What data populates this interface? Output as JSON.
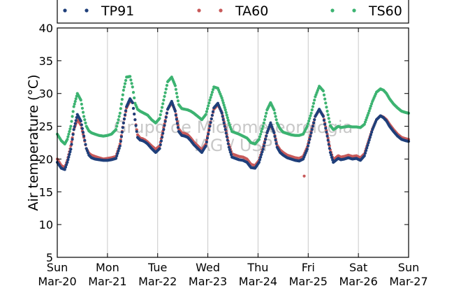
{
  "chart_data": {
    "type": "scatter",
    "title": "",
    "xlabel": "",
    "ylabel": "Air temperature (°C)",
    "ylim": [
      5,
      40
    ],
    "xlim": [
      0,
      7
    ],
    "grid": "vertical",
    "legend_placement": "top",
    "watermark": [
      "Grupo de Micrometeorologia",
      "IAG / USP"
    ],
    "x_ticks": [
      {
        "x": 0,
        "day": "Sun",
        "date": "Mar-20"
      },
      {
        "x": 1,
        "day": "Mon",
        "date": "Mar-21"
      },
      {
        "x": 2,
        "day": "Tue",
        "date": "Mar-22"
      },
      {
        "x": 3,
        "day": "Wed",
        "date": "Mar-23"
      },
      {
        "x": 4,
        "day": "Thu",
        "date": "Mar-24"
      },
      {
        "x": 5,
        "day": "Fri",
        "date": "Mar-25"
      },
      {
        "x": 6,
        "day": "Sat",
        "date": "Mar-26"
      },
      {
        "x": 7,
        "day": "Sun",
        "date": "Mar-27"
      }
    ],
    "y_ticks": [
      5,
      10,
      15,
      20,
      25,
      30,
      35,
      40
    ],
    "series": [
      {
        "name": "TP91",
        "color": "#1f3f7a",
        "x": [
          0.0,
          0.08,
          0.15,
          0.2,
          0.27,
          0.33,
          0.4,
          0.47,
          0.53,
          0.58,
          0.63,
          0.68,
          0.75,
          0.83,
          0.92,
          1.0,
          1.08,
          1.17,
          1.25,
          1.32,
          1.38,
          1.45,
          1.5,
          1.55,
          1.6,
          1.65,
          1.7,
          1.75,
          1.8,
          1.88,
          1.96,
          2.04,
          2.12,
          2.2,
          2.28,
          2.35,
          2.42,
          2.48,
          2.54,
          2.6,
          2.66,
          2.72,
          2.8,
          2.88,
          2.96,
          3.04,
          3.12,
          3.2,
          3.28,
          3.35,
          3.42,
          3.48,
          3.55,
          3.62,
          3.7,
          3.78,
          3.86,
          3.94,
          4.02,
          4.1,
          4.18,
          4.25,
          4.32,
          4.38,
          4.44,
          4.5,
          4.58,
          4.66,
          4.74,
          4.82,
          4.9,
          4.98,
          5.06,
          5.14,
          5.22,
          5.3,
          5.38,
          5.44,
          5.5,
          5.55,
          5.58,
          5.6,
          5.65,
          5.72,
          5.8,
          5.88,
          5.96,
          6.04,
          6.12,
          6.2,
          6.28,
          6.36,
          6.44,
          6.5,
          6.56,
          6.62,
          6.7,
          6.78,
          6.86,
          6.94,
          7.0
        ],
        "y": [
          19.5,
          18.6,
          18.4,
          19.5,
          21.5,
          24.5,
          26.8,
          25.8,
          23.5,
          21.6,
          20.6,
          20.2,
          20.0,
          19.9,
          19.8,
          19.8,
          19.9,
          20.1,
          22.0,
          25.5,
          28.0,
          29.2,
          28.6,
          26.0,
          23.3,
          22.9,
          22.8,
          22.6,
          22.3,
          21.6,
          21.0,
          21.6,
          24.5,
          27.6,
          28.8,
          27.3,
          24.2,
          23.6,
          23.5,
          23.3,
          22.8,
          22.2,
          21.6,
          21.0,
          22.0,
          25.0,
          27.8,
          28.5,
          27.0,
          24.5,
          21.8,
          20.3,
          20.1,
          19.9,
          19.8,
          19.5,
          18.7,
          18.6,
          19.5,
          21.5,
          24.0,
          25.5,
          24.0,
          21.8,
          21.0,
          20.6,
          20.2,
          20.0,
          19.8,
          19.7,
          20.0,
          21.5,
          24.0,
          26.5,
          27.6,
          26.5,
          23.5,
          21.0,
          19.5,
          19.8,
          20.0,
          20.1,
          19.9,
          20.0,
          20.2,
          20.0,
          20.1,
          19.8,
          20.5,
          22.5,
          24.5,
          26.0,
          26.6,
          26.3,
          25.8,
          25.0,
          24.2,
          23.5,
          23.0,
          22.8,
          22.7
        ]
      },
      {
        "name": "TA60",
        "color": "#c85a5a",
        "x": [
          0.0,
          0.08,
          0.15,
          0.2,
          0.27,
          0.33,
          0.4,
          0.47,
          0.53,
          0.58,
          0.63,
          0.68,
          0.75,
          0.83,
          0.92,
          1.0,
          1.08,
          1.17,
          1.25,
          1.32,
          1.38,
          1.45,
          1.5,
          1.55,
          1.6,
          1.65,
          1.7,
          1.75,
          1.8,
          1.88,
          1.96,
          2.04,
          2.12,
          2.2,
          2.28,
          2.35,
          2.42,
          2.48,
          2.54,
          2.6,
          2.66,
          2.72,
          2.8,
          2.88,
          2.96,
          3.04,
          3.12,
          3.2,
          3.28,
          3.35,
          3.42,
          3.48,
          3.55,
          3.62,
          3.7,
          3.78,
          3.86,
          3.94,
          4.02,
          4.1,
          4.18,
          4.25,
          4.32,
          4.38,
          4.44,
          4.5,
          4.58,
          4.66,
          4.74,
          4.82,
          4.9,
          4.98,
          5.06,
          5.14,
          5.22,
          5.3,
          5.38,
          5.44,
          5.5,
          5.55,
          5.58,
          5.6,
          5.65,
          5.72,
          5.8,
          5.88,
          5.96,
          6.04,
          6.12,
          6.2,
          6.28,
          6.36,
          6.44,
          6.5,
          6.56,
          6.62,
          6.7,
          6.78,
          6.86,
          6.94,
          7.0,
          4.92
        ],
        "y": [
          20.0,
          19.0,
          18.7,
          19.8,
          22.0,
          24.5,
          26.0,
          25.2,
          23.3,
          21.6,
          20.9,
          20.6,
          20.4,
          20.2,
          20.0,
          20.1,
          20.2,
          20.4,
          22.3,
          25.5,
          27.8,
          28.9,
          28.6,
          26.0,
          23.7,
          23.2,
          23.1,
          22.9,
          22.6,
          22.0,
          21.5,
          22.0,
          24.8,
          27.6,
          28.6,
          27.4,
          24.6,
          24.0,
          23.9,
          23.7,
          23.2,
          22.6,
          22.0,
          21.4,
          22.3,
          25.2,
          27.6,
          28.3,
          27.1,
          24.8,
          22.2,
          20.8,
          20.6,
          20.4,
          20.3,
          20.0,
          19.2,
          19.0,
          19.8,
          21.8,
          24.0,
          25.3,
          24.1,
          22.1,
          21.4,
          21.0,
          20.6,
          20.4,
          20.2,
          20.1,
          20.4,
          21.8,
          24.2,
          26.5,
          27.5,
          26.6,
          23.8,
          21.4,
          19.9,
          20.2,
          20.4,
          20.5,
          20.3,
          20.4,
          20.6,
          20.4,
          20.5,
          20.2,
          20.8,
          22.7,
          24.6,
          26.0,
          26.6,
          26.4,
          26.0,
          25.3,
          24.5,
          23.8,
          23.3,
          23.1,
          23.0,
          17.4
        ]
      },
      {
        "name": "TS60",
        "color": "#3cb371",
        "x": [
          0.0,
          0.08,
          0.15,
          0.2,
          0.27,
          0.33,
          0.4,
          0.47,
          0.53,
          0.58,
          0.63,
          0.68,
          0.75,
          0.83,
          0.92,
          1.0,
          1.08,
          1.17,
          1.25,
          1.32,
          1.38,
          1.45,
          1.5,
          1.55,
          1.6,
          1.65,
          1.7,
          1.75,
          1.8,
          1.88,
          1.96,
          2.04,
          2.12,
          2.2,
          2.28,
          2.35,
          2.42,
          2.48,
          2.54,
          2.6,
          2.66,
          2.72,
          2.8,
          2.88,
          2.96,
          3.04,
          3.12,
          3.2,
          3.28,
          3.35,
          3.42,
          3.48,
          3.55,
          3.62,
          3.7,
          3.78,
          3.86,
          3.94,
          4.02,
          4.1,
          4.18,
          4.25,
          4.32,
          4.38,
          4.44,
          4.5,
          4.58,
          4.66,
          4.74,
          4.82,
          4.9,
          4.98,
          5.06,
          5.14,
          5.22,
          5.3,
          5.38,
          5.44,
          5.5,
          5.55,
          5.58,
          5.6,
          5.65,
          5.72,
          5.8,
          5.88,
          5.96,
          6.04,
          6.12,
          6.2,
          6.28,
          6.36,
          6.44,
          6.5,
          6.56,
          6.62,
          6.7,
          6.78,
          6.86,
          6.94,
          7.0
        ],
        "y": [
          23.8,
          22.8,
          22.3,
          23.0,
          25.0,
          28.0,
          30.0,
          29.0,
          26.5,
          25.0,
          24.3,
          24.0,
          23.8,
          23.6,
          23.5,
          23.6,
          23.8,
          24.5,
          27.0,
          30.5,
          32.5,
          32.6,
          31.0,
          28.5,
          27.6,
          27.3,
          27.1,
          26.9,
          26.7,
          26.0,
          25.5,
          26.2,
          29.0,
          31.8,
          32.5,
          31.2,
          28.3,
          27.7,
          27.6,
          27.5,
          27.3,
          27.0,
          26.5,
          26.0,
          26.8,
          29.0,
          31.0,
          30.8,
          29.3,
          27.5,
          25.5,
          24.2,
          24.0,
          23.8,
          23.5,
          23.2,
          22.5,
          22.3,
          23.0,
          25.0,
          27.5,
          28.6,
          27.5,
          25.5,
          24.6,
          24.1,
          23.9,
          23.7,
          23.6,
          23.6,
          23.8,
          25.0,
          27.0,
          29.5,
          31.1,
          30.4,
          27.3,
          25.1,
          24.5,
          24.7,
          24.9,
          25.0,
          24.8,
          24.9,
          25.0,
          24.9,
          24.9,
          24.8,
          25.3,
          27.0,
          28.8,
          30.2,
          30.7,
          30.5,
          30.0,
          29.2,
          28.4,
          27.8,
          27.3,
          27.1,
          27.0
        ]
      }
    ]
  }
}
